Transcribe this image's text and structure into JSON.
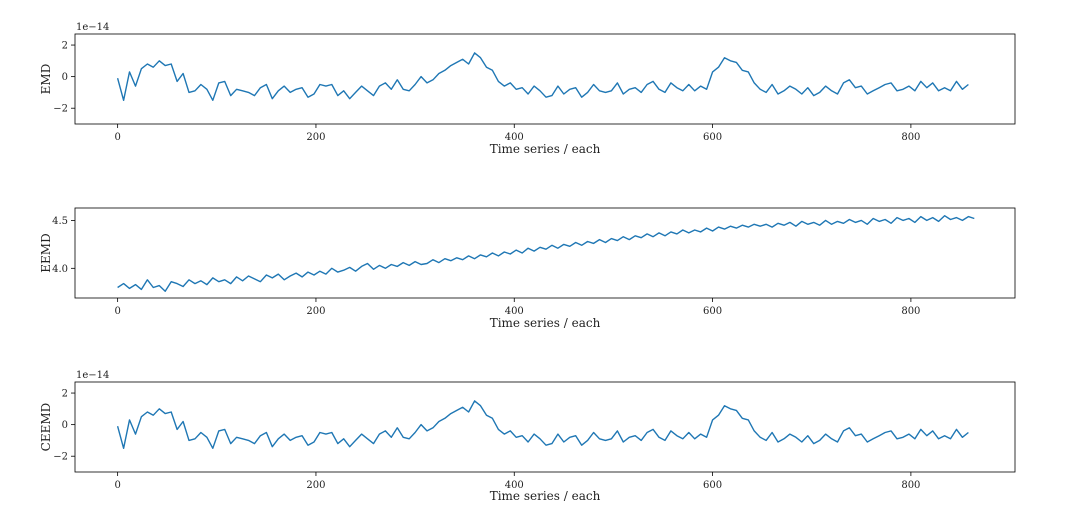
{
  "chart_data": [
    {
      "type": "line",
      "ylabel": "EMD",
      "xlabel": "Time series / each",
      "offset_text": "1e−14",
      "xlim": [
        -43,
        905
      ],
      "ylim": [
        -3.0,
        2.7
      ],
      "xticks": [
        0,
        200,
        400,
        600,
        800
      ],
      "xtick_labels": [
        "0",
        "200",
        "400",
        "600",
        "800"
      ],
      "yticks": [
        -2,
        0,
        2
      ],
      "ytick_labels": [
        "−2",
        "0",
        "2"
      ],
      "series_style": {
        "color": "#1f77b4"
      },
      "series": [
        {
          "name": "EMD",
          "x_start": 0,
          "x_step": 6,
          "values": [
            -0.1,
            -1.5,
            0.3,
            -0.6,
            0.5,
            0.8,
            0.6,
            1.0,
            0.7,
            0.8,
            -0.3,
            0.2,
            -1.0,
            -0.9,
            -0.5,
            -0.8,
            -1.5,
            -0.4,
            -0.3,
            -1.2,
            -0.8,
            -0.9,
            -1.0,
            -1.2,
            -0.7,
            -0.5,
            -1.4,
            -0.9,
            -0.6,
            -1.0,
            -0.8,
            -0.7,
            -1.3,
            -1.1,
            -0.5,
            -0.6,
            -0.5,
            -1.2,
            -0.9,
            -1.4,
            -1.0,
            -0.6,
            -0.9,
            -1.2,
            -0.6,
            -0.4,
            -0.8,
            -0.2,
            -0.8,
            -0.9,
            -0.5,
            0.0,
            -0.4,
            -0.2,
            0.2,
            0.4,
            0.7,
            0.9,
            1.1,
            0.8,
            1.5,
            1.2,
            0.6,
            0.4,
            -0.3,
            -0.6,
            -0.4,
            -0.8,
            -0.7,
            -1.1,
            -0.6,
            -0.9,
            -1.3,
            -1.2,
            -0.6,
            -1.1,
            -0.8,
            -0.7,
            -1.3,
            -1.0,
            -0.5,
            -0.9,
            -1.0,
            -0.9,
            -0.4,
            -1.1,
            -0.8,
            -0.7,
            -1.0,
            -0.5,
            -0.3,
            -0.8,
            -1.0,
            -0.4,
            -0.7,
            -0.9,
            -0.5,
            -0.9,
            -0.6,
            -0.8,
            0.3,
            0.6,
            1.2,
            1.0,
            0.9,
            0.4,
            0.3,
            -0.4,
            -0.8,
            -1.0,
            -0.5,
            -1.1,
            -0.9,
            -0.6,
            -0.8,
            -1.1,
            -0.7,
            -1.2,
            -1.0,
            -0.6,
            -0.9,
            -1.1,
            -0.4,
            -0.2,
            -0.7,
            -0.6,
            -1.1,
            -0.9,
            -0.7,
            -0.5,
            -0.4,
            -0.9,
            -0.8,
            -0.6,
            -0.9,
            -0.3,
            -0.7,
            -0.4,
            -0.9,
            -0.7,
            -0.9,
            -0.3,
            -0.8,
            -0.5
          ]
        }
      ]
    },
    {
      "type": "line",
      "ylabel": "EEMD",
      "xlabel": "Time series / each",
      "xlim": [
        -43,
        905
      ],
      "ylim": [
        3.69,
        4.63
      ],
      "xticks": [
        0,
        200,
        400,
        600,
        800
      ],
      "xtick_labels": [
        "0",
        "200",
        "400",
        "600",
        "800"
      ],
      "yticks": [
        4.0,
        4.5
      ],
      "ytick_labels": [
        "4.0",
        "4.5"
      ],
      "series_style": {
        "color": "#1f77b4"
      },
      "series": [
        {
          "name": "EEMD",
          "x_start": 0,
          "x_step": 6,
          "values": [
            3.8,
            3.84,
            3.79,
            3.83,
            3.78,
            3.88,
            3.8,
            3.82,
            3.76,
            3.86,
            3.84,
            3.81,
            3.88,
            3.84,
            3.87,
            3.83,
            3.9,
            3.86,
            3.88,
            3.84,
            3.91,
            3.87,
            3.92,
            3.89,
            3.86,
            3.93,
            3.9,
            3.94,
            3.88,
            3.92,
            3.95,
            3.91,
            3.96,
            3.93,
            3.97,
            3.94,
            4.0,
            3.96,
            3.98,
            4.01,
            3.97,
            4.02,
            4.05,
            3.99,
            4.03,
            4.0,
            4.04,
            4.02,
            4.06,
            4.03,
            4.07,
            4.04,
            4.05,
            4.09,
            4.06,
            4.1,
            4.08,
            4.11,
            4.09,
            4.13,
            4.1,
            4.14,
            4.12,
            4.16,
            4.13,
            4.17,
            4.15,
            4.19,
            4.16,
            4.21,
            4.18,
            4.22,
            4.2,
            4.24,
            4.21,
            4.25,
            4.23,
            4.27,
            4.24,
            4.28,
            4.26,
            4.3,
            4.27,
            4.31,
            4.29,
            4.33,
            4.3,
            4.34,
            4.32,
            4.36,
            4.33,
            4.37,
            4.34,
            4.38,
            4.36,
            4.4,
            4.37,
            4.4,
            4.38,
            4.42,
            4.39,
            4.43,
            4.41,
            4.44,
            4.42,
            4.45,
            4.43,
            4.46,
            4.44,
            4.46,
            4.43,
            4.47,
            4.45,
            4.48,
            4.44,
            4.49,
            4.46,
            4.48,
            4.45,
            4.5,
            4.46,
            4.49,
            4.47,
            4.51,
            4.48,
            4.5,
            4.46,
            4.52,
            4.49,
            4.51,
            4.47,
            4.53,
            4.5,
            4.52,
            4.48,
            4.54,
            4.5,
            4.53,
            4.49,
            4.55,
            4.51,
            4.53,
            4.5,
            4.54,
            4.52
          ]
        }
      ]
    },
    {
      "type": "line",
      "ylabel": "CEEMD",
      "xlabel": "Time series / each",
      "offset_text": "1e−14",
      "xlim": [
        -43,
        905
      ],
      "ylim": [
        -3.0,
        2.7
      ],
      "xticks": [
        0,
        200,
        400,
        600,
        800
      ],
      "xtick_labels": [
        "0",
        "200",
        "400",
        "600",
        "800"
      ],
      "yticks": [
        -2,
        0,
        2
      ],
      "ytick_labels": [
        "−2",
        "0",
        "2"
      ],
      "series_style": {
        "color": "#1f77b4"
      },
      "series": [
        {
          "name": "CEEMD",
          "x_start": 0,
          "x_step": 6,
          "values": [
            -0.1,
            -1.5,
            0.3,
            -0.6,
            0.5,
            0.8,
            0.6,
            1.0,
            0.7,
            0.8,
            -0.3,
            0.2,
            -1.0,
            -0.9,
            -0.5,
            -0.8,
            -1.5,
            -0.4,
            -0.3,
            -1.2,
            -0.8,
            -0.9,
            -1.0,
            -1.2,
            -0.7,
            -0.5,
            -1.4,
            -0.9,
            -0.6,
            -1.0,
            -0.8,
            -0.7,
            -1.3,
            -1.1,
            -0.5,
            -0.6,
            -0.5,
            -1.2,
            -0.9,
            -1.4,
            -1.0,
            -0.6,
            -0.9,
            -1.2,
            -0.6,
            -0.4,
            -0.8,
            -0.2,
            -0.8,
            -0.9,
            -0.5,
            0.0,
            -0.4,
            -0.2,
            0.2,
            0.4,
            0.7,
            0.9,
            1.1,
            0.8,
            1.5,
            1.2,
            0.6,
            0.4,
            -0.3,
            -0.6,
            -0.4,
            -0.8,
            -0.7,
            -1.1,
            -0.6,
            -0.9,
            -1.3,
            -1.2,
            -0.6,
            -1.1,
            -0.8,
            -0.7,
            -1.3,
            -1.0,
            -0.5,
            -0.9,
            -1.0,
            -0.9,
            -0.4,
            -1.1,
            -0.8,
            -0.7,
            -1.0,
            -0.5,
            -0.3,
            -0.8,
            -1.0,
            -0.4,
            -0.7,
            -0.9,
            -0.5,
            -0.9,
            -0.6,
            -0.8,
            0.3,
            0.6,
            1.2,
            1.0,
            0.9,
            0.4,
            0.3,
            -0.4,
            -0.8,
            -1.0,
            -0.5,
            -1.1,
            -0.9,
            -0.6,
            -0.8,
            -1.1,
            -0.7,
            -1.2,
            -1.0,
            -0.6,
            -0.9,
            -1.1,
            -0.4,
            -0.2,
            -0.7,
            -0.6,
            -1.1,
            -0.9,
            -0.7,
            -0.5,
            -0.4,
            -0.9,
            -0.8,
            -0.6,
            -0.9,
            -0.3,
            -0.7,
            -0.4,
            -0.9,
            -0.7,
            -0.9,
            -0.3,
            -0.8,
            -0.5
          ]
        }
      ]
    }
  ]
}
